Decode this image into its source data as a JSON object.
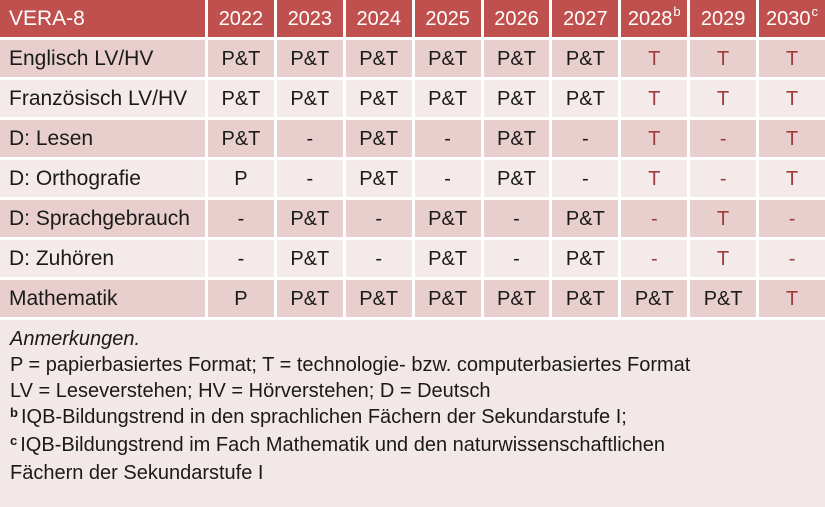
{
  "colors": {
    "header_bg": "#C0504D",
    "header_text": "#FFFFFF",
    "row_dark": "#E8CFCE",
    "row_light": "#F4EAE9",
    "gridline": "#FFFFFF",
    "body_text": "#1A1A1A",
    "highlight_red": "#9E3B3B"
  },
  "table": {
    "corner_label": "VERA-8",
    "columns": [
      {
        "label": "2022",
        "sup": ""
      },
      {
        "label": "2023",
        "sup": ""
      },
      {
        "label": "2024",
        "sup": ""
      },
      {
        "label": "2025",
        "sup": ""
      },
      {
        "label": "2026",
        "sup": ""
      },
      {
        "label": "2027",
        "sup": ""
      },
      {
        "label": "2028",
        "sup": "b"
      },
      {
        "label": "2029",
        "sup": ""
      },
      {
        "label": "2030",
        "sup": "c"
      }
    ],
    "rows": [
      {
        "label": "Englisch LV/HV",
        "cells": [
          {
            "v": "P&T",
            "red": false
          },
          {
            "v": "P&T",
            "red": false
          },
          {
            "v": "P&T",
            "red": false
          },
          {
            "v": "P&T",
            "red": false
          },
          {
            "v": "P&T",
            "red": false
          },
          {
            "v": "P&T",
            "red": false
          },
          {
            "v": "T",
            "red": true
          },
          {
            "v": "T",
            "red": true
          },
          {
            "v": "T",
            "red": true
          }
        ]
      },
      {
        "label": "Französisch LV/HV",
        "cells": [
          {
            "v": "P&T",
            "red": false
          },
          {
            "v": "P&T",
            "red": false
          },
          {
            "v": "P&T",
            "red": false
          },
          {
            "v": "P&T",
            "red": false
          },
          {
            "v": "P&T",
            "red": false
          },
          {
            "v": "P&T",
            "red": false
          },
          {
            "v": "T",
            "red": true
          },
          {
            "v": "T",
            "red": true
          },
          {
            "v": "T",
            "red": true
          }
        ]
      },
      {
        "label": "D: Lesen",
        "cells": [
          {
            "v": "P&T",
            "red": false
          },
          {
            "v": "-",
            "red": false
          },
          {
            "v": "P&T",
            "red": false
          },
          {
            "v": "-",
            "red": false
          },
          {
            "v": "P&T",
            "red": false
          },
          {
            "v": "-",
            "red": false
          },
          {
            "v": "T",
            "red": true
          },
          {
            "v": "-",
            "red": true
          },
          {
            "v": "T",
            "red": true
          }
        ]
      },
      {
        "label": "D: Orthografie",
        "cells": [
          {
            "v": "P",
            "red": false
          },
          {
            "v": "-",
            "red": false
          },
          {
            "v": "P&T",
            "red": false
          },
          {
            "v": "-",
            "red": false
          },
          {
            "v": "P&T",
            "red": false
          },
          {
            "v": "-",
            "red": false
          },
          {
            "v": "T",
            "red": true
          },
          {
            "v": "-",
            "red": true
          },
          {
            "v": "T",
            "red": true
          }
        ]
      },
      {
        "label": "D: Sprachgebrauch",
        "cells": [
          {
            "v": "-",
            "red": false
          },
          {
            "v": "P&T",
            "red": false
          },
          {
            "v": "-",
            "red": false
          },
          {
            "v": "P&T",
            "red": false
          },
          {
            "v": "-",
            "red": false
          },
          {
            "v": "P&T",
            "red": false
          },
          {
            "v": "-",
            "red": true
          },
          {
            "v": "T",
            "red": true
          },
          {
            "v": "-",
            "red": true
          }
        ]
      },
      {
        "label": "D: Zuhören",
        "cells": [
          {
            "v": "-",
            "red": false
          },
          {
            "v": "P&T",
            "red": false
          },
          {
            "v": "-",
            "red": false
          },
          {
            "v": "P&T",
            "red": false
          },
          {
            "v": "-",
            "red": false
          },
          {
            "v": "P&T",
            "red": false
          },
          {
            "v": "-",
            "red": true
          },
          {
            "v": "T",
            "red": true
          },
          {
            "v": "-",
            "red": true
          }
        ]
      },
      {
        "label": "Mathematik",
        "cells": [
          {
            "v": "P",
            "red": false
          },
          {
            "v": "P&T",
            "red": false
          },
          {
            "v": "P&T",
            "red": false
          },
          {
            "v": "P&T",
            "red": false
          },
          {
            "v": "P&T",
            "red": false
          },
          {
            "v": "P&T",
            "red": false
          },
          {
            "v": "P&T",
            "red": false
          },
          {
            "v": "P&T",
            "red": false
          },
          {
            "v": "T",
            "red": true
          }
        ]
      }
    ]
  },
  "notes": {
    "lines": [
      {
        "sup": "",
        "italic": true,
        "text": "Anmerkungen."
      },
      {
        "sup": "",
        "italic": false,
        "text": "P = papierbasiertes Format; T = technologie- bzw. computerbasiertes Format"
      },
      {
        "sup": "",
        "italic": false,
        "text": "LV = Leseverstehen; HV = Hörverstehen; D = Deutsch"
      },
      {
        "sup": "b",
        "italic": false,
        "text": "IQB-Bildungstrend in den sprachlichen Fächern der Sekundarstufe I;"
      },
      {
        "sup": "c",
        "italic": false,
        "text": "IQB-Bildungstrend im Fach Mathematik und den naturwissenschaftlichen"
      },
      {
        "sup": "",
        "italic": false,
        "text": "Fächern der Sekundarstufe I"
      }
    ]
  }
}
